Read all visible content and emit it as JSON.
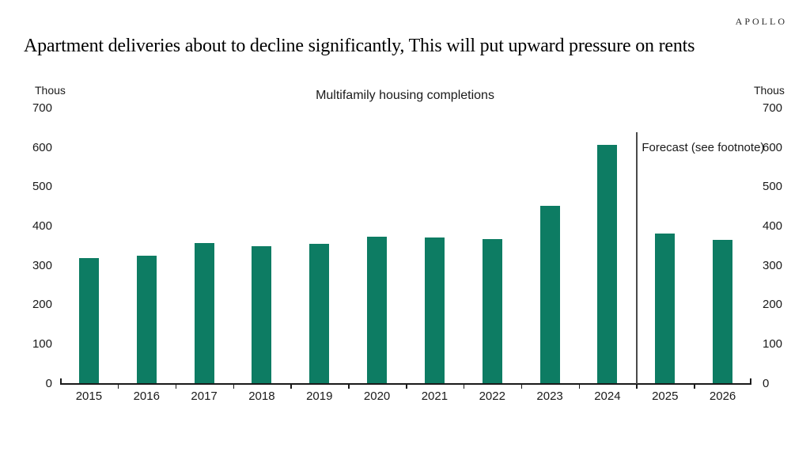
{
  "header": {
    "brand": "APOLLO",
    "title": "Apartment deliveries about to decline significantly, This will put upward pressure on rents"
  },
  "chart_data": {
    "type": "bar",
    "title": "Multifamily housing completions",
    "unit_label_left": "Thous",
    "unit_label_right": "Thous",
    "categories": [
      "2015",
      "2016",
      "2017",
      "2018",
      "2019",
      "2020",
      "2021",
      "2022",
      "2023",
      "2024",
      "2025",
      "2026"
    ],
    "values": [
      320,
      325,
      358,
      349,
      356,
      374,
      371,
      367,
      453,
      608,
      381,
      365
    ],
    "ylabel": "",
    "xlabel": "",
    "ylim": [
      0,
      700
    ],
    "yticks": [
      0,
      100,
      200,
      300,
      400,
      500,
      600,
      700
    ],
    "grid": false,
    "legend": "none",
    "bar_color": "#0d7c63",
    "axis_color": "#1a1a1a",
    "forecast": {
      "label": "Forecast (see footnote)",
      "start_category": "2025",
      "boundary_after_index": 9
    }
  }
}
